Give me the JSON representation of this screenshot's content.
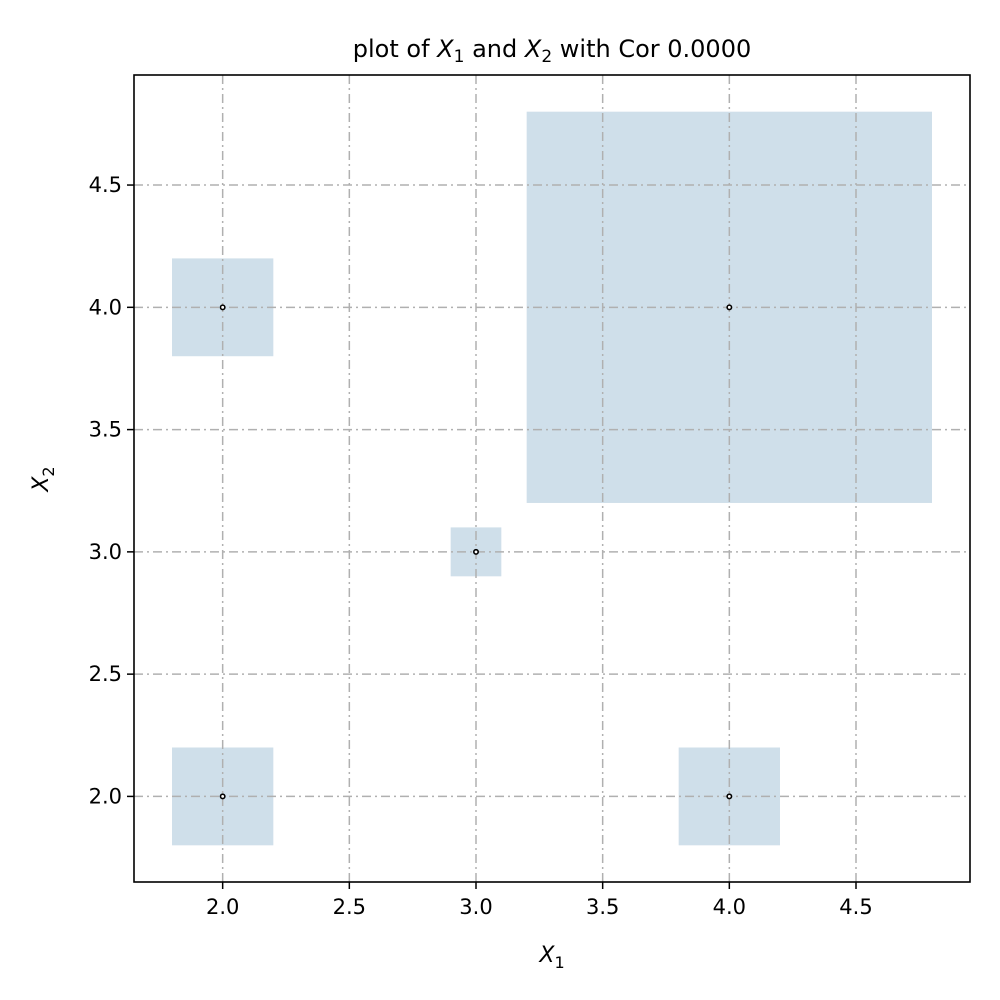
{
  "chart_data": {
    "type": "scatter",
    "title": {
      "prefix": "plot of ",
      "var1": "X",
      "var1_sub": "1",
      "middle": " and ",
      "var2": "X",
      "var2_sub": "2",
      "suffix": " with Cor 0.0000"
    },
    "xlabel": {
      "main": "X",
      "sub": "1"
    },
    "ylabel": {
      "main": "X",
      "sub": "2"
    },
    "xlim": [
      1.65,
      4.95
    ],
    "ylim": [
      1.65,
      4.95
    ],
    "xticks": [
      "2.0",
      "2.5",
      "3.0",
      "3.5",
      "4.0",
      "4.5"
    ],
    "yticks": [
      "2.0",
      "2.5",
      "3.0",
      "3.5",
      "4.0",
      "4.5"
    ],
    "grid": true,
    "points": [
      {
        "x": 2,
        "y": 2,
        "half_width": 0.2
      },
      {
        "x": 2,
        "y": 4,
        "half_width": 0.2
      },
      {
        "x": 3,
        "y": 3,
        "half_width": 0.1
      },
      {
        "x": 4,
        "y": 2,
        "half_width": 0.2
      },
      {
        "x": 4,
        "y": 4,
        "half_width": 0.8
      }
    ],
    "colors": {
      "box_fill": "#cfdfea",
      "point": "#000000",
      "grid": "#b0b0b0"
    }
  }
}
